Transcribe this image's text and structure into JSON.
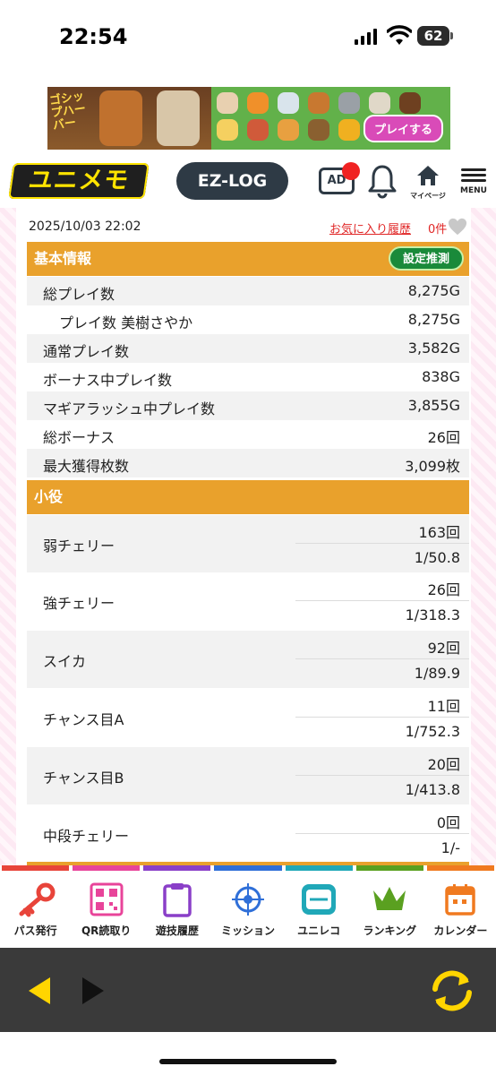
{
  "status": {
    "time": "22:54",
    "battery": "62"
  },
  "ad": {
    "title": "ゴシップハーバー",
    "cta": "プレイする"
  },
  "header": {
    "logo": "ユニメモ",
    "ezlog": "EZ-LOG",
    "ad_label": "AD",
    "mypage": "マイページ",
    "menu": "MENU"
  },
  "record": {
    "date": "2025/10/03 22:02",
    "favorite_link": "お気に入り履歴",
    "favorite_count": "0件"
  },
  "basic": {
    "title": "基本情報",
    "setting_button": "設定推測",
    "rows": [
      {
        "label": "総プレイ数",
        "value": "8,275G"
      },
      {
        "label": "プレイ数 美樹さやか",
        "value": "8,275G"
      },
      {
        "label": "通常プレイ数",
        "value": "3,582G"
      },
      {
        "label": "ボーナス中プレイ数",
        "value": "838G"
      },
      {
        "label": "マギアラッシュ中プレイ数",
        "value": "3,855G"
      },
      {
        "label": "総ボーナス",
        "value": "26回"
      },
      {
        "label": "最大獲得枚数",
        "value": "3,099枚"
      }
    ]
  },
  "koyaku": {
    "title": "小役",
    "rows": [
      {
        "label": "弱チェリー",
        "count": "163回",
        "prob": "1/50.8"
      },
      {
        "label": "強チェリー",
        "count": "26回",
        "prob": "1/318.3"
      },
      {
        "label": "スイカ",
        "count": "92回",
        "prob": "1/89.9"
      },
      {
        "label": "チャンス目A",
        "count": "11回",
        "prob": "1/752.3"
      },
      {
        "label": "チャンス目B",
        "count": "20回",
        "prob": "1/413.8"
      },
      {
        "label": "中段チェリー",
        "count": "0回",
        "prob": "1/-"
      }
    ]
  },
  "nav": [
    {
      "label": "パス発行",
      "color": "#e8443a"
    },
    {
      "label": "QR読取り",
      "color": "#e8449a"
    },
    {
      "label": "遊技履歴",
      "color": "#8a3fc8"
    },
    {
      "label": "ミッション",
      "color": "#2f6fd8"
    },
    {
      "label": "ユニレコ",
      "color": "#20a8b8"
    },
    {
      "label": "ランキング",
      "color": "#5aa020"
    },
    {
      "label": "カレンダー",
      "color": "#f07a20"
    }
  ],
  "colors": {
    "section": "#e9a12c",
    "accent_red": "#e02626",
    "button_green": "#1a8a3a"
  }
}
